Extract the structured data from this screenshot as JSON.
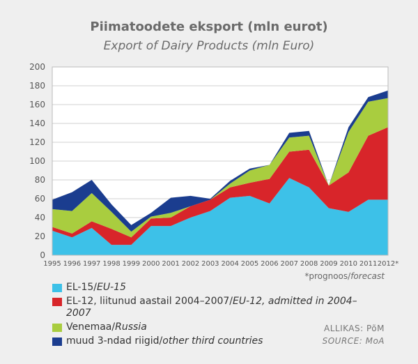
{
  "title_et": "Piimatoodete eksport (mln eurot)",
  "title_en": "Export of Dairy Products (mln Euro)",
  "forecast_note": {
    "et": "*prognoos/",
    "en": "forecast"
  },
  "source": {
    "line1": "ALLIKAS: PõM",
    "line2": "SOURCE: MoA"
  },
  "legend": [
    {
      "main": "EL-15/",
      "italic": "EU-15",
      "color": "#3dc1e8"
    },
    {
      "main": "EL-12, liitunud aastail 2004–2007/",
      "italic": "EU-12, admitted in 2004–2007",
      "color": "#d8252a"
    },
    {
      "main": "Venemaa/",
      "italic": "Russia",
      "color": "#a9cd3f"
    },
    {
      "main": "muud 3-ndad riigid/",
      "italic": "other third countries",
      "color": "#1b3d8f"
    }
  ],
  "chart_data": {
    "type": "area",
    "stacked": true,
    "categories": [
      "1995",
      "1996",
      "1997",
      "1998",
      "1999",
      "2000",
      "2001",
      "2002",
      "2003",
      "2004",
      "2005",
      "2006",
      "2007",
      "2008",
      "2009",
      "2010",
      "2011",
      "2012*"
    ],
    "ylim": [
      0,
      200
    ],
    "yticks": [
      0,
      20,
      40,
      60,
      80,
      100,
      120,
      140,
      160,
      180,
      200
    ],
    "grid": true,
    "series": [
      {
        "name": "EU-15",
        "color": "#3dc1e8",
        "values": [
          26,
          19,
          29,
          11,
          11,
          31,
          31,
          40,
          47,
          61,
          63,
          55,
          82,
          72,
          50,
          46,
          59,
          59
        ]
      },
      {
        "name": "EU-12",
        "color": "#d8252a",
        "values": [
          4,
          4,
          7,
          17,
          8,
          8,
          9,
          12,
          12,
          11,
          14,
          26,
          28,
          40,
          24,
          42,
          68,
          77
        ]
      },
      {
        "name": "Russia",
        "color": "#a9cd3f",
        "values": [
          19,
          24,
          30,
          18,
          6,
          2,
          5,
          0,
          0,
          4,
          13,
          15,
          15,
          15,
          0,
          43,
          36,
          31
        ]
      },
      {
        "name": "other third countries",
        "color": "#1b3d8f",
        "values": [
          10,
          20,
          14,
          8,
          7,
          4,
          16,
          11,
          1,
          3,
          2,
          0,
          5,
          5,
          0,
          5,
          5,
          8
        ]
      }
    ]
  }
}
